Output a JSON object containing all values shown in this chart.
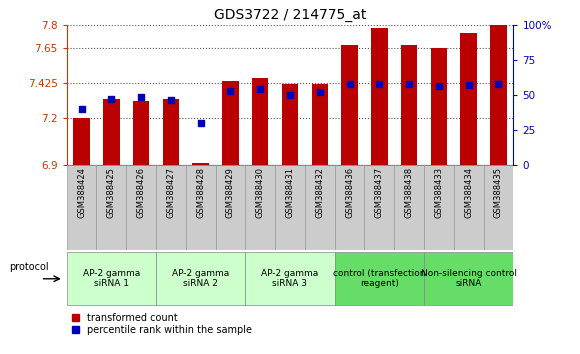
{
  "title": "GDS3722 / 214775_at",
  "samples": [
    "GSM388424",
    "GSM388425",
    "GSM388426",
    "GSM388427",
    "GSM388428",
    "GSM388429",
    "GSM388430",
    "GSM388431",
    "GSM388432",
    "GSM388436",
    "GSM388437",
    "GSM388438",
    "GSM388433",
    "GSM388434",
    "GSM388435"
  ],
  "red_values": [
    7.2,
    7.32,
    7.31,
    7.32,
    6.91,
    7.44,
    7.46,
    7.42,
    7.42,
    7.67,
    7.78,
    7.67,
    7.65,
    7.75,
    7.8
  ],
  "blue_values": [
    40,
    47,
    48,
    46,
    30,
    53,
    54,
    50,
    52,
    58,
    58,
    58,
    56,
    57,
    58
  ],
  "ylim_left": [
    6.9,
    7.8
  ],
  "ylim_right": [
    0,
    100
  ],
  "yticks_left": [
    6.9,
    7.2,
    7.425,
    7.65,
    7.8
  ],
  "ytick_labels_left": [
    "6.9",
    "7.2",
    "7.425",
    "7.65",
    "7.8"
  ],
  "yticks_right": [
    0,
    25,
    50,
    75,
    100
  ],
  "ytick_labels_right": [
    "0",
    "25",
    "50",
    "75",
    "100%"
  ],
  "groups": [
    {
      "label": "AP-2 gamma\nsiRNA 1",
      "indices": [
        0,
        1,
        2
      ],
      "color": "#ccffcc"
    },
    {
      "label": "AP-2 gamma\nsiRNA 2",
      "indices": [
        3,
        4,
        5
      ],
      "color": "#ccffcc"
    },
    {
      "label": "AP-2 gamma\nsiRNA 3",
      "indices": [
        6,
        7,
        8
      ],
      "color": "#ccffcc"
    },
    {
      "label": "control (transfection\nreagent)",
      "indices": [
        9,
        10,
        11
      ],
      "color": "#66dd66"
    },
    {
      "label": "Non-silencing control\nsiRNA",
      "indices": [
        12,
        13,
        14
      ],
      "color": "#66dd66"
    }
  ],
  "protocol_label": "protocol",
  "bar_color": "#bb0000",
  "dot_color": "#0000bb",
  "bar_bottom": 6.9,
  "grid_color": "#555555",
  "sample_box_color": "#cccccc",
  "left_axis_color": "#cc3300",
  "right_axis_color": "#0000cc"
}
